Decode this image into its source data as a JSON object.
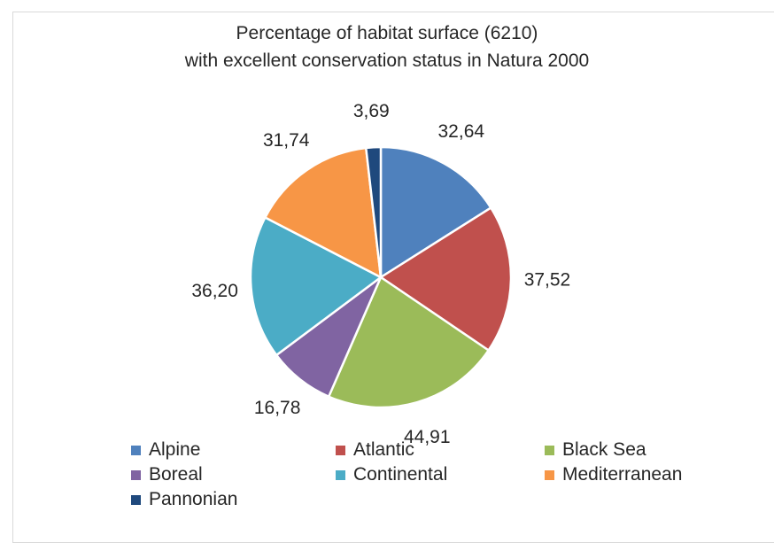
{
  "chart_data": {
    "type": "pie",
    "title": "Percentage of habitat surface (6210)",
    "subtitle": "with excellent conservation status in Natura 2000",
    "categories": [
      "Alpine",
      "Atlantic",
      "Black Sea",
      "Boreal",
      "Continental",
      "Mediterranean",
      "Pannonian"
    ],
    "values": [
      32.64,
      37.52,
      44.91,
      16.78,
      36.2,
      31.74,
      3.69
    ],
    "data_labels": [
      "32,64",
      "37,52",
      "44,91",
      "16,78",
      "36,20",
      "31,74",
      "3,69"
    ],
    "colors": [
      "#4f81bd",
      "#c0504d",
      "#9bbb59",
      "#8064a2",
      "#4bacc6",
      "#f79646",
      "#1f497d"
    ],
    "legend_position": "bottom"
  }
}
